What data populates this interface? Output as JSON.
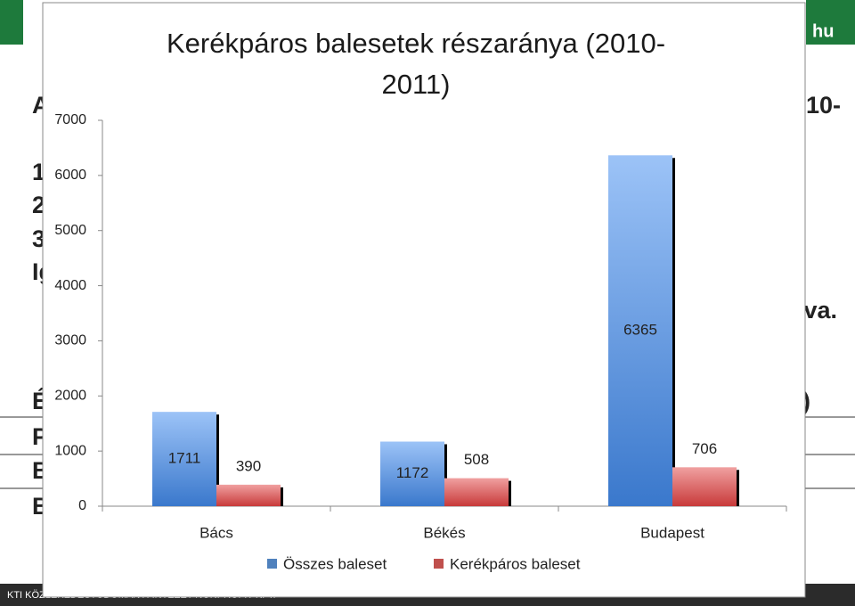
{
  "slide": {
    "corner_label": "hu",
    "footer": "KTI KÖZLEKEDÉSTUDOMÁNYI INTÉZET NONPROFIT KFT.",
    "fragments": [
      "A",
      "10-",
      "1",
      "2",
      "3",
      "Ig",
      "va.",
      "É",
      ")",
      "P",
      "B",
      "B"
    ]
  },
  "chart_data": {
    "type": "bar",
    "title": "Kerékpáros balesetek részaránya (2010-2011)",
    "categories": [
      "Bács",
      "Békés",
      "Budapest"
    ],
    "series": [
      {
        "name": "Összes baleset",
        "color": "#4f81bd",
        "values": [
          1711,
          1172,
          6365
        ]
      },
      {
        "name": "Kerékpáros baleset",
        "color": "#c0504d",
        "values": [
          390,
          508,
          706
        ]
      }
    ],
    "ylim": [
      0,
      7000
    ],
    "yticks": [
      0,
      1000,
      2000,
      3000,
      4000,
      5000,
      6000,
      7000
    ],
    "grid": false,
    "legend": "bottom"
  }
}
